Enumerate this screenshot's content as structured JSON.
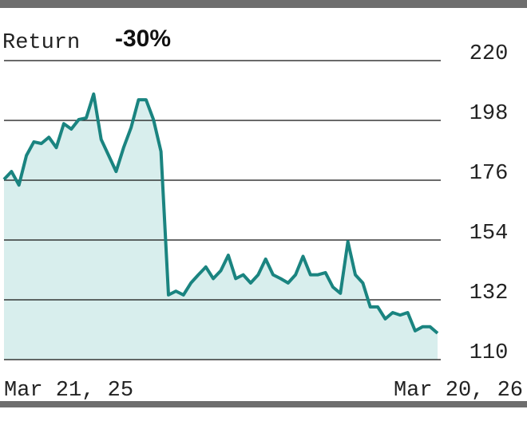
{
  "chart_data": {
    "type": "area",
    "title": "Return",
    "annotation": "-30%",
    "categories": [
      "Mar 21, 25",
      null,
      null,
      null,
      null,
      null,
      null,
      null,
      null,
      null,
      null,
      null,
      null,
      null,
      null,
      null,
      null,
      null,
      null,
      null,
      null,
      null,
      null,
      null,
      null,
      null,
      null,
      null,
      null,
      null,
      null,
      null,
      null,
      null,
      null,
      null,
      null,
      null,
      null,
      null,
      null,
      null,
      null,
      null,
      null,
      null,
      null,
      null,
      null,
      null,
      null,
      null,
      null,
      null,
      null,
      null,
      null,
      null,
      "Mar 20, 26"
    ],
    "values": [
      176.3,
      179.2,
      174.2,
      185.1,
      190.1,
      189.5,
      191.8,
      188,
      196.8,
      194.8,
      198.3,
      198.9,
      207.7,
      191,
      185.1,
      179.2,
      188,
      195.4,
      205.6,
      205.6,
      198.3,
      186.6,
      133.8,
      135.2,
      133.8,
      138.2,
      141.2,
      144.1,
      139.8,
      142.7,
      148.4,
      139.8,
      141.2,
      138.2,
      141.2,
      147,
      141.2,
      139.8,
      138.2,
      141.2,
      148,
      141.2,
      141.2,
      142,
      136.7,
      134.4,
      153.4,
      141.2,
      138.2,
      129.4,
      129.4,
      125,
      127.3,
      126.4,
      127.3,
      120.6,
      122.1,
      122.1,
      119.7
    ],
    "color": "#1a8480",
    "fill": "#d8eeed",
    "ylim": [
      110,
      220
    ],
    "yticks": [
      110,
      132,
      154,
      176,
      198,
      220
    ],
    "grid": true
  }
}
